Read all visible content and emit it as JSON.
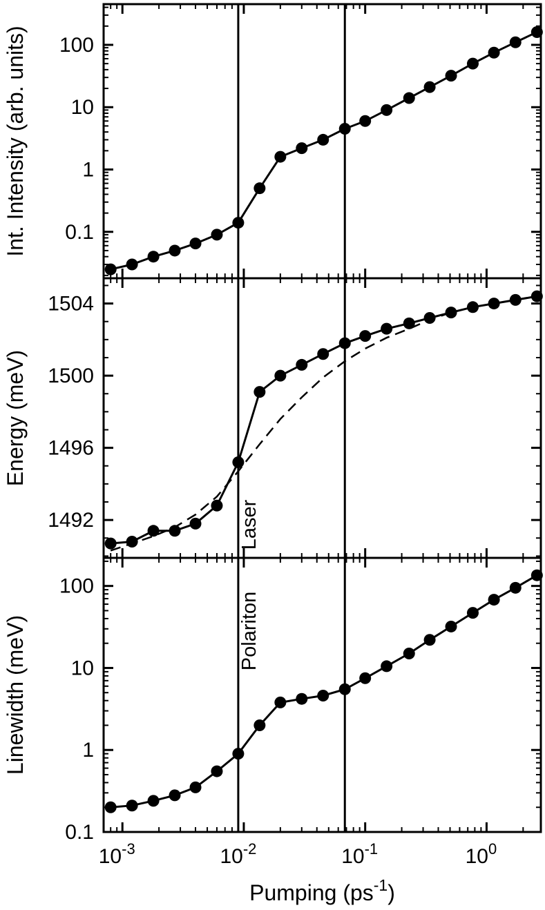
{
  "figure": {
    "background": "#ffffff",
    "ink": "#000000",
    "xlabel": {
      "pre": "Pumping (ps",
      "sup": "-1",
      "post": ")"
    },
    "x_axis": {
      "scale": "log",
      "min": 0.0007,
      "max": 2.8,
      "tick_exponents": [
        -3,
        -2,
        -1,
        0
      ]
    },
    "vlines": [
      0.009,
      0.068
    ]
  },
  "chart_data": [
    {
      "type": "line",
      "panel": "intensity",
      "ylabel": "Int. Intensity (arb. units)",
      "yscale": "log",
      "ylim": [
        0.018,
        450
      ],
      "yticks": [
        0.1,
        1,
        10,
        100
      ],
      "ytick_labels": [
        "0.1",
        "1",
        "10",
        "100"
      ],
      "x": [
        0.0008,
        0.0012,
        0.0018,
        0.0027,
        0.004,
        0.006,
        0.009,
        0.0135,
        0.02,
        0.03,
        0.045,
        0.068,
        0.1,
        0.15,
        0.23,
        0.34,
        0.51,
        0.77,
        1.15,
        1.73,
        2.6
      ],
      "series": [
        {
          "name": "integrated-intensity",
          "marker": "circle",
          "line": "solid",
          "values": [
            0.025,
            0.03,
            0.04,
            0.05,
            0.065,
            0.09,
            0.14,
            0.5,
            1.6,
            2.2,
            3.0,
            4.5,
            6.0,
            9,
            14,
            21,
            32,
            50,
            75,
            110,
            160
          ]
        }
      ],
      "annotations": []
    },
    {
      "type": "line",
      "panel": "energy",
      "ylabel": "Energy (meV)",
      "yscale": "linear",
      "ylim": [
        1489.9,
        1505.4
      ],
      "yticks": [
        1492,
        1496,
        1500,
        1504
      ],
      "ytick_labels": [
        "1492",
        "1496",
        "1500",
        "1504"
      ],
      "x": [
        0.0008,
        0.0012,
        0.0018,
        0.0027,
        0.004,
        0.006,
        0.009,
        0.0135,
        0.02,
        0.03,
        0.045,
        0.068,
        0.1,
        0.15,
        0.23,
        0.34,
        0.51,
        0.77,
        1.15,
        1.73,
        2.6
      ],
      "series": [
        {
          "name": "peak-energy",
          "marker": "circle",
          "line": "solid",
          "values": [
            1490.7,
            1490.8,
            1491.4,
            1491.4,
            1491.8,
            1492.8,
            1495.2,
            1499.1,
            1500.0,
            1500.6,
            1501.2,
            1501.8,
            1502.2,
            1502.6,
            1502.9,
            1503.2,
            1503.5,
            1503.8,
            1504.0,
            1504.2,
            1504.4
          ]
        },
        {
          "name": "energy-dashed-model",
          "marker": "none",
          "line": "dashed",
          "values": [
            1490.3,
            1490.7,
            1491.1,
            1491.6,
            1492.3,
            1493.3,
            1494.7,
            1496.2,
            1497.6,
            1498.8,
            1499.9,
            1500.8,
            1501.5,
            1502.1,
            1502.6,
            1503.1,
            1503.5,
            1503.8,
            1504.0,
            1504.2,
            1504.4
          ]
        }
      ],
      "annotations": [
        {
          "text": "Laser",
          "x": 0.0125,
          "y": 1490.35,
          "rotate": -90
        }
      ]
    },
    {
      "type": "line",
      "panel": "linewidth",
      "ylabel": "Linewidth (meV)",
      "yscale": "log",
      "ylim": [
        0.1,
        220
      ],
      "yticks": [
        0.1,
        1,
        10,
        100
      ],
      "ytick_labels": [
        "0.1",
        "1",
        "10",
        "100"
      ],
      "x": [
        0.0008,
        0.0012,
        0.0018,
        0.0027,
        0.004,
        0.006,
        0.009,
        0.0135,
        0.02,
        0.03,
        0.045,
        0.068,
        0.1,
        0.15,
        0.23,
        0.34,
        0.51,
        0.77,
        1.15,
        1.73,
        2.6
      ],
      "series": [
        {
          "name": "linewidth",
          "marker": "circle",
          "line": "solid",
          "values": [
            0.2,
            0.21,
            0.24,
            0.28,
            0.35,
            0.55,
            0.9,
            2.0,
            3.8,
            4.2,
            4.6,
            5.5,
            7.5,
            10.5,
            15,
            22,
            32,
            47,
            68,
            95,
            135
          ]
        }
      ],
      "annotations": [
        {
          "text": "Polariton",
          "x": 0.0125,
          "y": 9.3,
          "rotate": -90
        }
      ]
    }
  ]
}
